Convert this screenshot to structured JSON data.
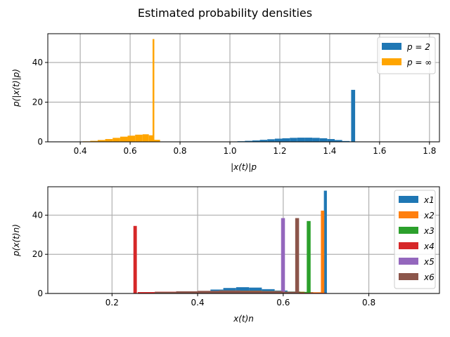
{
  "figure": {
    "suptitle": "Estimated probability densities"
  },
  "chart_data": [
    {
      "type": "bar",
      "subtype": "histogram",
      "title": "",
      "xlabel": "|x(t)|p",
      "ylabel": "p(|x(t)|p)",
      "xlim": [
        0.27,
        1.84
      ],
      "ylim": [
        0,
        54.5
      ],
      "xticks": [
        "0.4",
        "0.6",
        "0.8",
        "1.0",
        "1.2",
        "1.4",
        "1.6",
        "1.8"
      ],
      "xtick_values": [
        0.4,
        0.6,
        0.8,
        1.0,
        1.2,
        1.4,
        1.6,
        1.8
      ],
      "yticks": [
        "0",
        "20",
        "40"
      ],
      "ytick_values": [
        0,
        20,
        40
      ],
      "grid": true,
      "legend_position": "top-right",
      "series": [
        {
          "name": "p = 2",
          "color": "#1f77b4",
          "bins": [
            {
              "x": [
                1.03,
                1.06
              ],
              "y": 0.3
            },
            {
              "x": [
                1.06,
                1.09
              ],
              "y": 0.5
            },
            {
              "x": [
                1.09,
                1.12
              ],
              "y": 0.7
            },
            {
              "x": [
                1.12,
                1.15
              ],
              "y": 1.0
            },
            {
              "x": [
                1.15,
                1.18
              ],
              "y": 1.3
            },
            {
              "x": [
                1.18,
                1.21
              ],
              "y": 1.6
            },
            {
              "x": [
                1.21,
                1.24
              ],
              "y": 1.8
            },
            {
              "x": [
                1.24,
                1.27
              ],
              "y": 2.0
            },
            {
              "x": [
                1.27,
                1.3
              ],
              "y": 2.1
            },
            {
              "x": [
                1.3,
                1.33
              ],
              "y": 2.1
            },
            {
              "x": [
                1.33,
                1.36
              ],
              "y": 2.0
            },
            {
              "x": [
                1.36,
                1.39
              ],
              "y": 1.8
            },
            {
              "x": [
                1.39,
                1.42
              ],
              "y": 1.4
            },
            {
              "x": [
                1.42,
                1.45
              ],
              "y": 0.9
            },
            {
              "x": [
                1.45,
                1.48
              ],
              "y": 0.4
            },
            {
              "x": [
                1.486,
                1.502
              ],
              "y": 26.2
            }
          ]
        },
        {
          "name": "p = ∞",
          "color": "#ffa500",
          "bins": [
            {
              "x": [
                0.32,
                0.35
              ],
              "y": 0.05
            },
            {
              "x": [
                0.35,
                0.38
              ],
              "y": 0.1
            },
            {
              "x": [
                0.38,
                0.41
              ],
              "y": 0.15
            },
            {
              "x": [
                0.41,
                0.44
              ],
              "y": 0.25
            },
            {
              "x": [
                0.44,
                0.47
              ],
              "y": 0.5
            },
            {
              "x": [
                0.47,
                0.5
              ],
              "y": 0.9
            },
            {
              "x": [
                0.5,
                0.53
              ],
              "y": 1.4
            },
            {
              "x": [
                0.53,
                0.56
              ],
              "y": 2.0
            },
            {
              "x": [
                0.56,
                0.59
              ],
              "y": 2.6
            },
            {
              "x": [
                0.59,
                0.62
              ],
              "y": 3.1
            },
            {
              "x": [
                0.62,
                0.65
              ],
              "y": 3.6
            },
            {
              "x": [
                0.65,
                0.675
              ],
              "y": 3.8
            },
            {
              "x": [
                0.675,
                0.69
              ],
              "y": 3.3
            },
            {
              "x": [
                0.69,
                0.697
              ],
              "y": 51.8
            },
            {
              "x": [
                0.697,
                0.72
              ],
              "y": 1.0
            }
          ]
        }
      ]
    },
    {
      "type": "bar",
      "subtype": "histogram",
      "title": "",
      "xlabel": "x(t)n",
      "ylabel": "p(x(t)n)",
      "xlim": [
        0.05,
        0.965
      ],
      "ylim": [
        0,
        54.5
      ],
      "xticks": [
        "0.2",
        "0.4",
        "0.6",
        "0.8"
      ],
      "xtick_values": [
        0.2,
        0.4,
        0.6,
        0.8
      ],
      "yticks": [
        "0",
        "20",
        "40"
      ],
      "ytick_values": [
        0,
        20,
        40
      ],
      "grid": true,
      "legend_position": "top-right",
      "series": [
        {
          "name": "x1",
          "color": "#1f77b4",
          "bins": [
            {
              "x": [
                0.4,
                0.43
              ],
              "y": 1.0
            },
            {
              "x": [
                0.43,
                0.46
              ],
              "y": 2.0
            },
            {
              "x": [
                0.46,
                0.49
              ],
              "y": 2.8
            },
            {
              "x": [
                0.49,
                0.52
              ],
              "y": 3.2
            },
            {
              "x": [
                0.52,
                0.55
              ],
              "y": 3.0
            },
            {
              "x": [
                0.55,
                0.58
              ],
              "y": 2.2
            },
            {
              "x": [
                0.58,
                0.61
              ],
              "y": 1.5
            },
            {
              "x": [
                0.61,
                0.64
              ],
              "y": 1.0
            },
            {
              "x": [
                0.64,
                0.67
              ],
              "y": 0.7
            },
            {
              "x": [
                0.67,
                0.695
              ],
              "y": 0.5
            },
            {
              "x": [
                0.695,
                0.702
              ],
              "y": 52.5
            }
          ]
        },
        {
          "name": "x2",
          "color": "#ff7f0e",
          "bins": [
            {
              "x": [
                0.3,
                0.35
              ],
              "y": 0.6
            },
            {
              "x": [
                0.35,
                0.4
              ],
              "y": 1.0
            },
            {
              "x": [
                0.4,
                0.45
              ],
              "y": 1.3
            },
            {
              "x": [
                0.45,
                0.5
              ],
              "y": 1.5
            },
            {
              "x": [
                0.5,
                0.55
              ],
              "y": 1.4
            },
            {
              "x": [
                0.55,
                0.6
              ],
              "y": 1.2
            },
            {
              "x": [
                0.6,
                0.65
              ],
              "y": 0.9
            },
            {
              "x": [
                0.65,
                0.688
              ],
              "y": 0.6
            },
            {
              "x": [
                0.688,
                0.696
              ],
              "y": 42.3
            }
          ]
        },
        {
          "name": "x3",
          "color": "#2ca02c",
          "bins": [
            {
              "x": [
                0.3,
                0.35
              ],
              "y": 0.6
            },
            {
              "x": [
                0.35,
                0.4
              ],
              "y": 1.0
            },
            {
              "x": [
                0.4,
                0.45
              ],
              "y": 1.2
            },
            {
              "x": [
                0.45,
                0.5
              ],
              "y": 1.4
            },
            {
              "x": [
                0.5,
                0.55
              ],
              "y": 1.3
            },
            {
              "x": [
                0.55,
                0.6
              ],
              "y": 1.1
            },
            {
              "x": [
                0.6,
                0.655
              ],
              "y": 0.8
            },
            {
              "x": [
                0.655,
                0.664
              ],
              "y": 37.0
            }
          ]
        },
        {
          "name": "x4",
          "color": "#d62728",
          "bins": [
            {
              "x": [
                0.25,
                0.258
              ],
              "y": 34.5
            },
            {
              "x": [
                0.26,
                0.3
              ],
              "y": 0.7
            },
            {
              "x": [
                0.3,
                0.35
              ],
              "y": 0.9
            },
            {
              "x": [
                0.35,
                0.4
              ],
              "y": 1.1
            },
            {
              "x": [
                0.4,
                0.45
              ],
              "y": 1.2
            },
            {
              "x": [
                0.45,
                0.5
              ],
              "y": 1.1
            },
            {
              "x": [
                0.5,
                0.55
              ],
              "y": 0.9
            },
            {
              "x": [
                0.55,
                0.6
              ],
              "y": 0.7
            },
            {
              "x": [
                0.6,
                0.65
              ],
              "y": 0.5
            },
            {
              "x": [
                0.65,
                0.7
              ],
              "y": 0.3
            },
            {
              "x": [
                0.7,
                0.75
              ],
              "y": 0.15
            }
          ]
        },
        {
          "name": "x5",
          "color": "#9467bd",
          "bins": [
            {
              "x": [
                0.3,
                0.35
              ],
              "y": 0.7
            },
            {
              "x": [
                0.35,
                0.4
              ],
              "y": 1.0
            },
            {
              "x": [
                0.4,
                0.45
              ],
              "y": 1.3
            },
            {
              "x": [
                0.45,
                0.5
              ],
              "y": 1.4
            },
            {
              "x": [
                0.5,
                0.55
              ],
              "y": 1.2
            },
            {
              "x": [
                0.55,
                0.595
              ],
              "y": 0.9
            },
            {
              "x": [
                0.595,
                0.604
              ],
              "y": 38.5
            }
          ]
        },
        {
          "name": "x6",
          "color": "#8c564b",
          "bins": [
            {
              "x": [
                0.3,
                0.35
              ],
              "y": 0.8
            },
            {
              "x": [
                0.35,
                0.4
              ],
              "y": 1.1
            },
            {
              "x": [
                0.4,
                0.45
              ],
              "y": 1.3
            },
            {
              "x": [
                0.45,
                0.5
              ],
              "y": 1.4
            },
            {
              "x": [
                0.5,
                0.55
              ],
              "y": 1.3
            },
            {
              "x": [
                0.55,
                0.6
              ],
              "y": 1.1
            },
            {
              "x": [
                0.6,
                0.628
              ],
              "y": 0.8
            },
            {
              "x": [
                0.628,
                0.637
              ],
              "y": 38.5
            }
          ]
        }
      ]
    }
  ]
}
